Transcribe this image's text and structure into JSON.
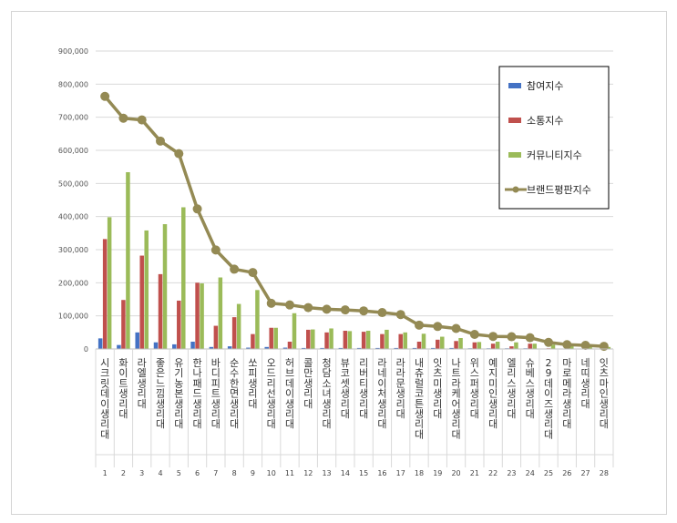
{
  "chart_data": {
    "type": "bar",
    "categories": [
      "시크릿데이 생리대",
      "화이트 생리대",
      "라엘 생리대",
      "좋은느낌 생리대",
      "유기농본 생리대",
      "한나패드 생리대",
      "바디피트 생리대",
      "순수한면 생리대",
      "쏘피 생리대",
      "오드리선 생리대",
      "허브데이 생리대",
      "콜만 생리대",
      "청담소녀 생리대",
      "뷰코셋 생리대",
      "리버티 생리대",
      "라네이처 생리대",
      "라라문 생리대",
      "내츄럴코튼 생리대",
      "잇츠미 생리대",
      "나트라케어 생리대",
      "위스퍼 생리대",
      "예지미인 생리대",
      "엘리스 생리대",
      "슈베스 생리대",
      "29데이즈 생리대",
      "마로메라 생리대",
      "네띠 생리대",
      "잇츠마인 생리대"
    ],
    "index_labels": [
      "1",
      "2",
      "3",
      "4",
      "5",
      "6",
      "7",
      "8",
      "9",
      "10",
      "11",
      "12",
      "13",
      "14",
      "15",
      "16",
      "17",
      "18",
      "19",
      "20",
      "21",
      "22",
      "23",
      "24",
      "25",
      "26",
      "27",
      "28"
    ],
    "series": [
      {
        "name": "참여지수",
        "type": "bar",
        "color": "#4472c4",
        "values": [
          32000,
          12000,
          50000,
          20000,
          14000,
          22000,
          6000,
          8000,
          4000,
          6000,
          4000,
          3000,
          3000,
          3000,
          3000,
          3000,
          3000,
          3000,
          3000,
          3000,
          2000,
          2000,
          2000,
          2000,
          1000,
          1000,
          1000,
          1000
        ]
      },
      {
        "name": "소통지수",
        "type": "bar",
        "color": "#c0504d",
        "values": [
          332000,
          148000,
          282000,
          226000,
          146000,
          200000,
          70000,
          96000,
          45000,
          64000,
          22000,
          58000,
          50000,
          55000,
          52000,
          45000,
          45000,
          22000,
          28000,
          24000,
          20000,
          16000,
          8000,
          16000,
          2000,
          2000,
          1000,
          1000
        ]
      },
      {
        "name": "커뮤니티지수",
        "type": "bar",
        "color": "#9bbb59",
        "values": [
          398000,
          534000,
          358000,
          377000,
          428000,
          198000,
          216000,
          136000,
          178000,
          64000,
          108000,
          59000,
          62000,
          54000,
          55000,
          58000,
          50000,
          46000,
          37000,
          33000,
          21000,
          22000,
          20000,
          16000,
          13000,
          9000,
          8000,
          6000
        ]
      },
      {
        "name": "브랜드평판지수",
        "type": "line",
        "color": "#948a54",
        "values": [
          763000,
          697000,
          692000,
          628000,
          590000,
          423000,
          299000,
          241000,
          231000,
          138000,
          133000,
          125000,
          120000,
          118000,
          115000,
          110000,
          104000,
          72000,
          68000,
          62000,
          44000,
          38000,
          37000,
          34000,
          20000,
          13000,
          11000,
          8000
        ]
      }
    ],
    "y_ticks": [
      "0",
      "100,000",
      "200,000",
      "300,000",
      "400,000",
      "500,000",
      "600,000",
      "700,000",
      "800,000",
      "900,000"
    ],
    "ylim": [
      0,
      900000
    ],
    "legend_position": "right",
    "grid": true
  }
}
